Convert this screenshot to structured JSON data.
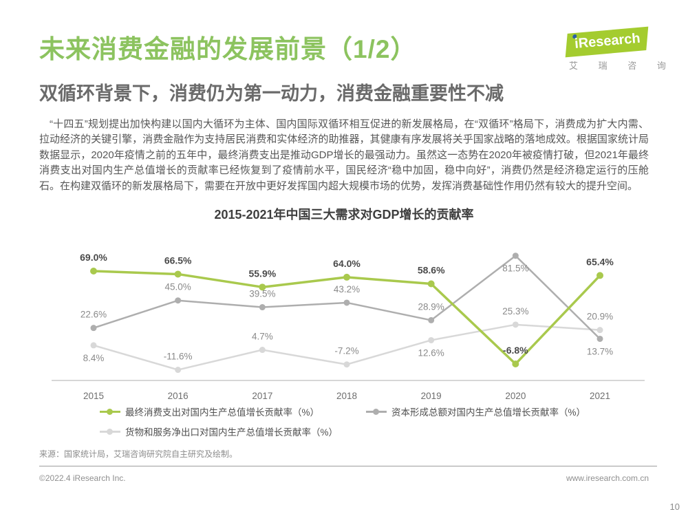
{
  "header": {
    "title": "未来消费金融的发展前景（1/2）",
    "logo": {
      "brand": "iResearch",
      "brand_cn": "艾 瑞 咨 询"
    }
  },
  "section": {
    "subtitle": "双循环背景下，消费仍为第一动力，消费金融重要性不减",
    "paragraph": "“十四五”规划提出加快构建以国内大循环为主体、国内国际双循环相互促进的新发展格局，在“双循环”格局下，消费成为扩大内需、拉动经济的关键引擎，消费金融作为支持居民消费和实体经济的助推器，其健康有序发展将关乎国家战略的落地成效。根据国家统计局数据显示，2020年疫情之前的五年中，最终消费支出是推动GDP增长的最强动力。虽然这一态势在2020年被疫情打破，但2021年最终消费支出对国内生产总值增长的贡献率已经恢复到了疫情前水平，国民经济“稳中加固，稳中向好”，消费仍然是经济稳定运行的压舱石。在构建双循环的新发展格局下，需要在开放中更好发挥国内超大规模市场的优势，发挥消费基础性作用仍然有较大的提升空间。"
  },
  "chart_data": {
    "type": "line",
    "title": "2015-2021年中国三大需求对GDP增长的贡献率",
    "categories": [
      "2015",
      "2016",
      "2017",
      "2018",
      "2019",
      "2020",
      "2021"
    ],
    "series": [
      {
        "name": "最终消费支出对国内生产总值增长贡献率（%）",
        "color": "#a9c94d",
        "emphasis": true,
        "values": [
          69.0,
          66.5,
          55.9,
          64.0,
          58.6,
          -6.8,
          65.4
        ]
      },
      {
        "name": "资本形成总额对国内生产总值增长贡献率（%）",
        "color": "#aeaeae",
        "emphasis": false,
        "values": [
          22.6,
          45.0,
          39.5,
          43.2,
          28.9,
          81.5,
          13.7
        ]
      },
      {
        "name": "货物和服务净出口对国内生产总值增长贡献率（%）",
        "color": "#d8d8d8",
        "emphasis": false,
        "values": [
          8.4,
          -11.6,
          4.7,
          -7.2,
          12.6,
          25.3,
          20.9
        ]
      }
    ],
    "ylim": [
      -20,
      95
    ],
    "grid": false,
    "legend_position": "bottom",
    "axis_color": "#c9c9c9",
    "label_color_emphasis": "#4a4a4a",
    "label_color_regular": "#8a8a8a",
    "tick_color": "#6e6e6e"
  },
  "footer": {
    "source": "来源：国家统计局，艾瑞咨询研究院自主研究及绘制。",
    "copyright": "©2022.4 iResearch Inc.",
    "website": "www.iresearch.com.cn",
    "page_number": "10"
  }
}
